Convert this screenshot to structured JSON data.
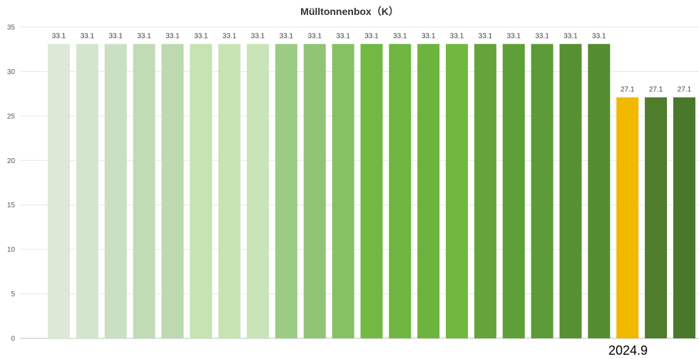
{
  "chart_data": {
    "type": "bar",
    "title": "Mülltonnenbox（K）",
    "ylim": [
      0,
      35
    ],
    "yticks": [
      0,
      5,
      10,
      15,
      20,
      25,
      30,
      35
    ],
    "grid": true,
    "values": [
      33.1,
      33.1,
      33.1,
      33.1,
      33.1,
      33.1,
      33.1,
      33.1,
      33.1,
      33.1,
      33.1,
      33.1,
      33.1,
      33.1,
      33.1,
      33.1,
      33.1,
      33.1,
      33.1,
      33.1,
      27.1,
      27.1,
      27.1
    ],
    "data_labels": [
      "33.1",
      "33.1",
      "33.1",
      "33.1",
      "33.1",
      "33.1",
      "33.1",
      "33.1",
      "33.1",
      "33.1",
      "33.1",
      "33.1",
      "33.1",
      "33.1",
      "33.1",
      "33.1",
      "33.1",
      "33.1",
      "33.1",
      "33.1",
      "27.1",
      "27.1",
      "27.1"
    ],
    "colors": [
      "#dbe9d6",
      "#d3e6cd",
      "#c9e1c2",
      "#c1dbb7",
      "#bcd9b0",
      "#c6e3b3",
      "#c6e4b4",
      "#c9e5b7",
      "#9bcb84",
      "#8fc574",
      "#86c262",
      "#72b843",
      "#70b642",
      "#6db33f",
      "#70b83f",
      "#64a43b",
      "#5e9f37",
      "#5d9b36",
      "#578f33",
      "#548c32",
      "#f2b800",
      "#4e7d2c",
      "#49782a"
    ],
    "annotation": "2024.9"
  }
}
